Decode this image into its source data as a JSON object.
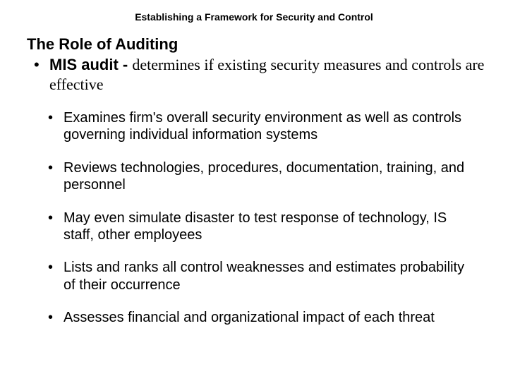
{
  "colors": {
    "background": "#ffffff",
    "text": "#000000"
  },
  "typography": {
    "header_fontsize": 14,
    "title_fontsize": 22,
    "lead_fontsize": 22,
    "sub_fontsize": 20,
    "sans_family": "Arial",
    "serif_family": "Times New Roman"
  },
  "header": "Establishing a Framework for Security and Control",
  "title": "The Role of Auditing",
  "lead": {
    "bullet": "•",
    "term": "MIS audit - ",
    "definition": "determines if existing security measures and controls are effective"
  },
  "sub_bullet": "•",
  "sub_items": [
    "Examines firm's overall security environment as well as controls governing individual information systems",
    "Reviews technologies, procedures, documentation, training, and personnel",
    "May even simulate disaster to test response of technology, IS staff, other employees",
    "Lists and ranks all control weaknesses and estimates probability of their occurrence",
    "Assesses financial and organizational impact of each threat"
  ]
}
